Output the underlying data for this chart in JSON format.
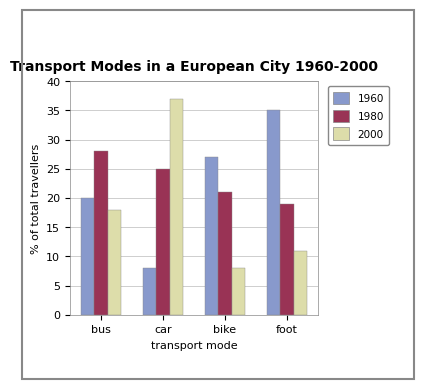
{
  "title": "Transport Modes in a European City 1960-2000",
  "categories": [
    "bus",
    "car",
    "bike",
    "foot"
  ],
  "years": [
    "1960",
    "1980",
    "2000"
  ],
  "values": {
    "1960": [
      20,
      8,
      27,
      35
    ],
    "1980": [
      28,
      25,
      21,
      19
    ],
    "2000": [
      18,
      37,
      8,
      11
    ]
  },
  "bar_colors": {
    "1960": "#8899CC",
    "1980": "#993355",
    "2000": "#DDDDAA"
  },
  "xlabel": "transport mode",
  "ylabel": "% of total travellers",
  "ylim": [
    0,
    40
  ],
  "yticks": [
    0,
    5,
    10,
    15,
    20,
    25,
    30,
    35,
    40
  ],
  "title_fontsize": 10,
  "axis_fontsize": 8,
  "tick_fontsize": 8,
  "legend_fontsize": 7.5,
  "background_color": "#ffffff",
  "figure_bg": "#ffffff",
  "chart_bg": "#ffffff"
}
